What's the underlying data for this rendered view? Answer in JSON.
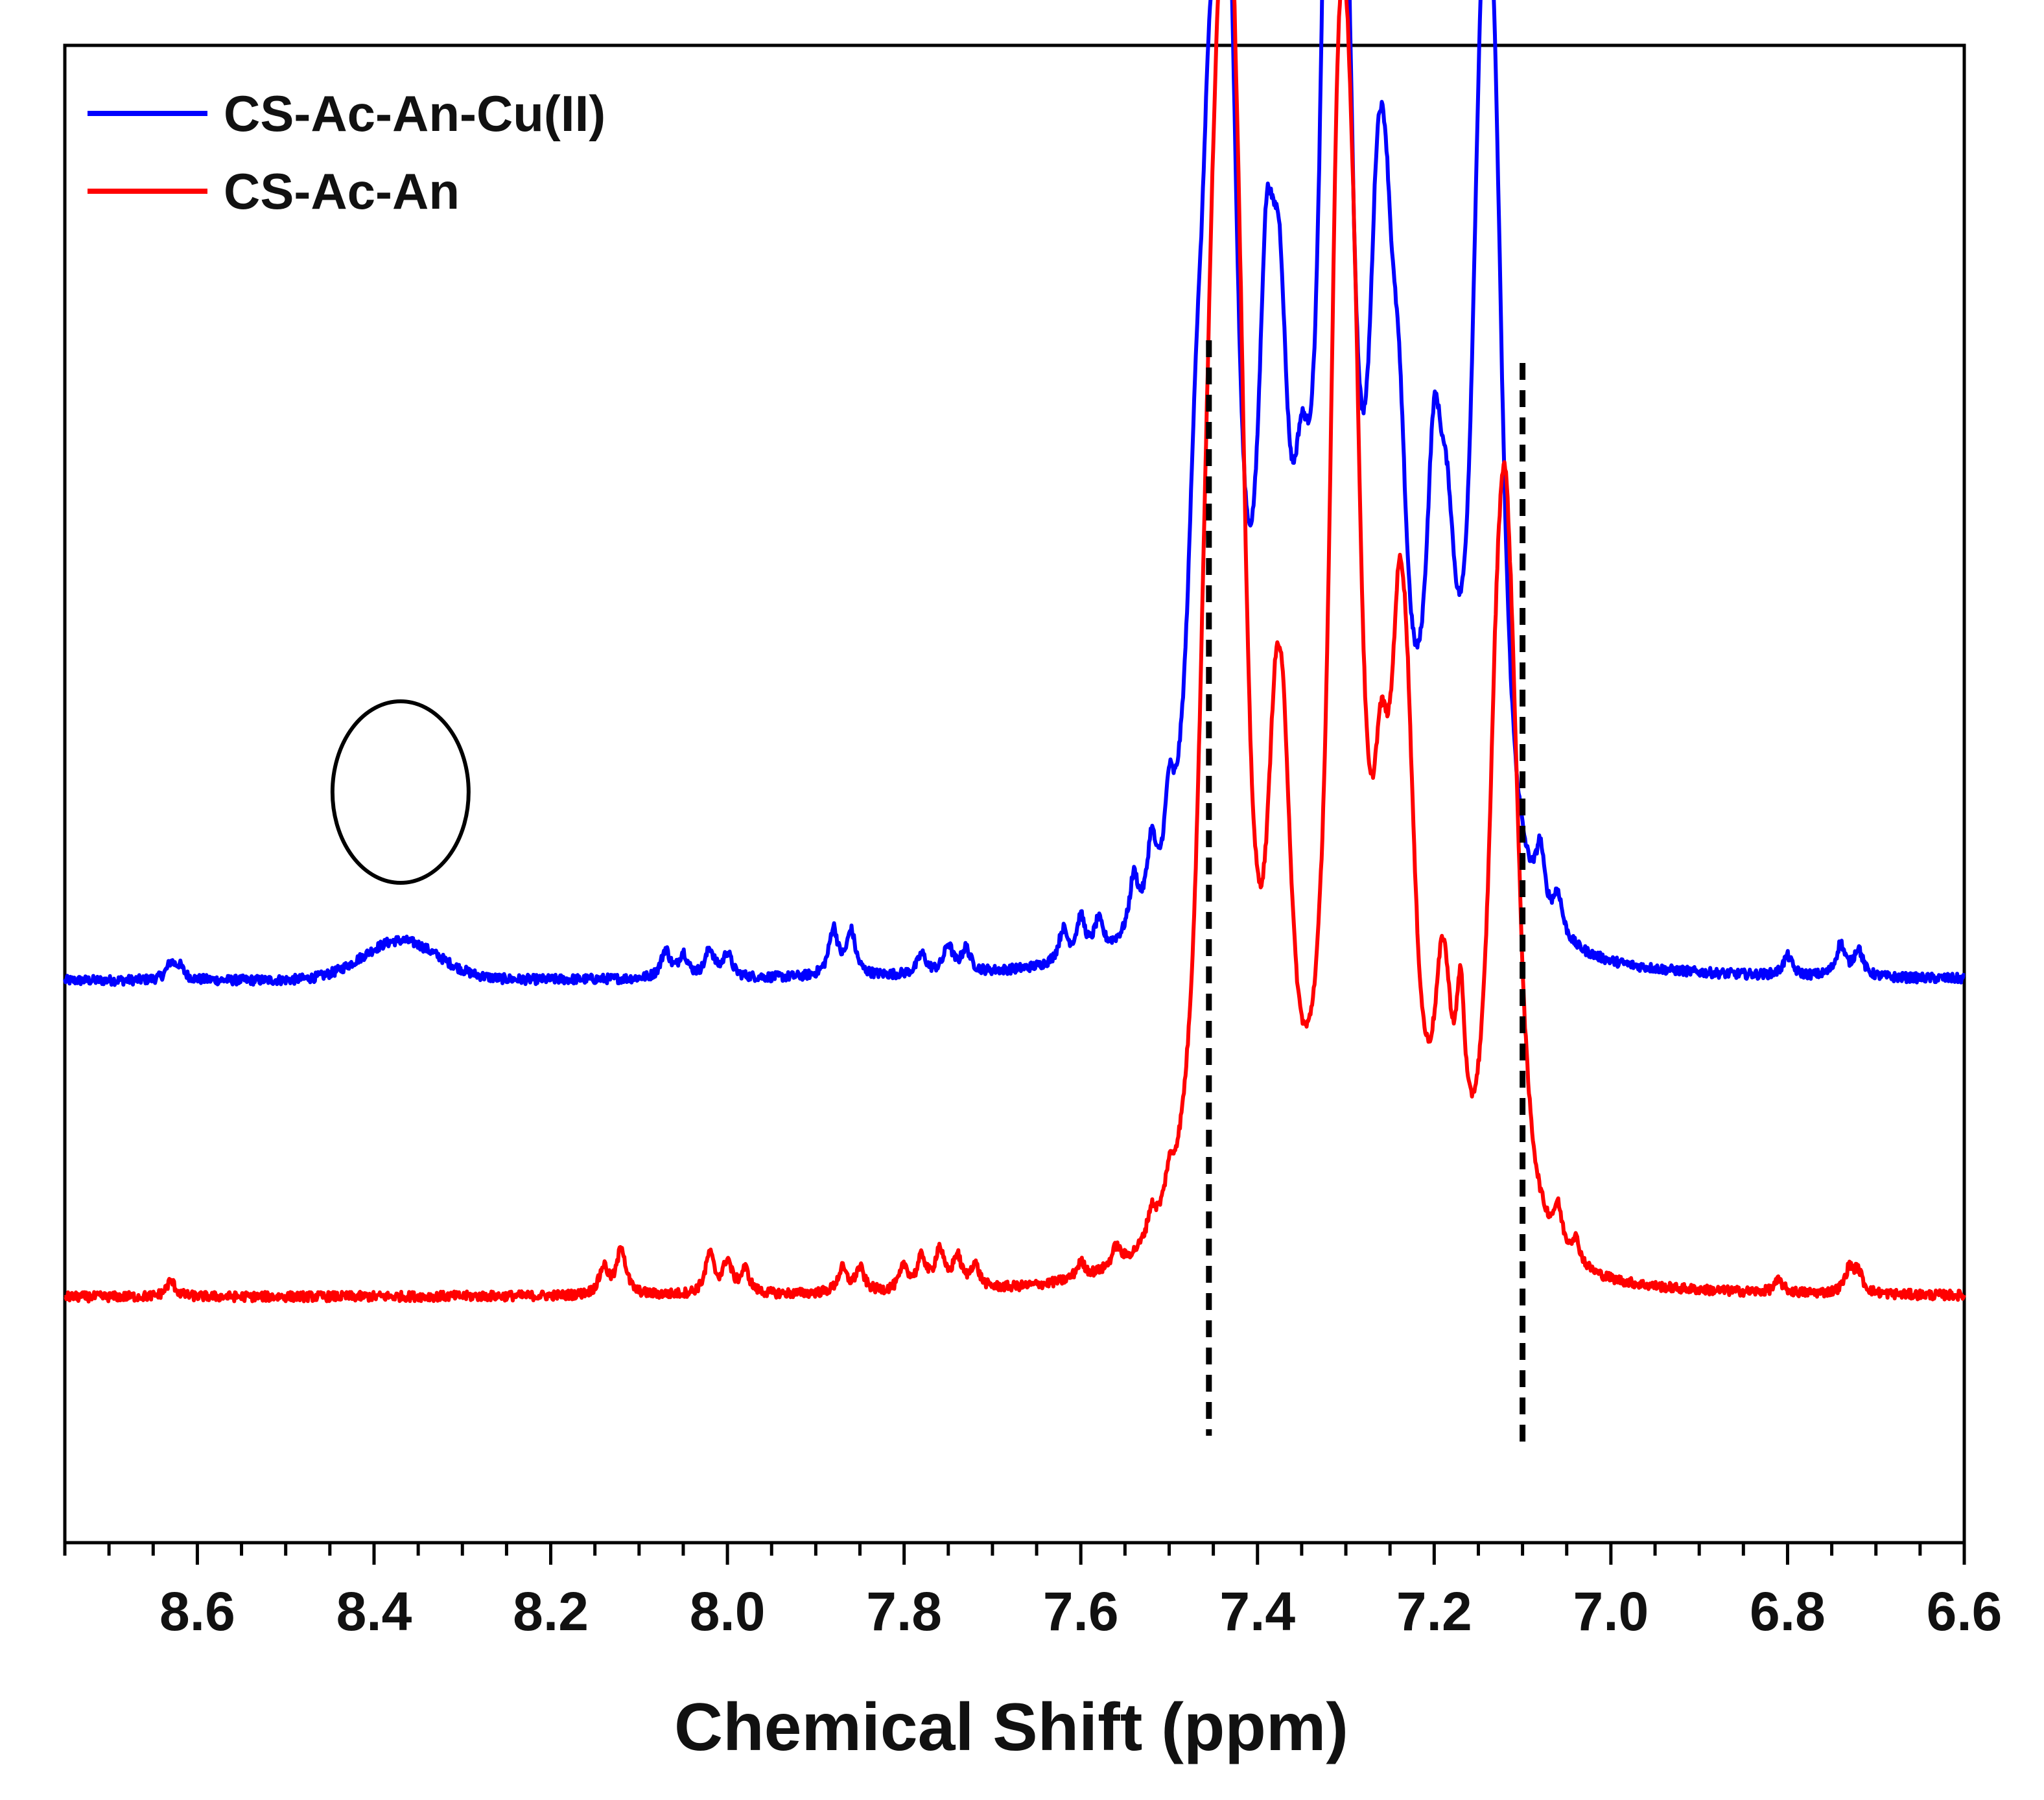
{
  "chart_data": {
    "type": "line",
    "title": "",
    "xlabel": "Chemical Shift (ppm)",
    "ylabel": "",
    "xlim": [
      8.75,
      6.6
    ],
    "x_reversed": true,
    "y_ticks_shown": false,
    "grid": false,
    "legend_position": "top-left",
    "x_ticks": [
      {
        "value": 8.6,
        "label": "8.6"
      },
      {
        "value": 8.4,
        "label": "8.4"
      },
      {
        "value": 8.2,
        "label": "8.2"
      },
      {
        "value": 8.0,
        "label": "8.0"
      },
      {
        "value": 7.8,
        "label": "7.8"
      },
      {
        "value": 7.6,
        "label": "7.6"
      },
      {
        "value": 7.4,
        "label": "7.4"
      },
      {
        "value": 7.2,
        "label": "7.2"
      },
      {
        "value": 7.0,
        "label": "7.0"
      },
      {
        "value": 6.8,
        "label": "6.8"
      },
      {
        "value": 6.6,
        "label": "6.6"
      }
    ],
    "x_minor_step": 0.05,
    "series": [
      {
        "name": "CS-Ac-An-Cu(II)",
        "color": "#0000ff",
        "baseline": 0.12,
        "broad_humps": [
          {
            "x": 8.37,
            "amp": 0.05,
            "width": 0.06
          }
        ],
        "peaks": [
          {
            "x": 8.63,
            "amp": 0.02
          },
          {
            "x": 8.62,
            "amp": 0.015
          },
          {
            "x": 8.07,
            "amp": 0.035
          },
          {
            "x": 8.05,
            "amp": 0.03
          },
          {
            "x": 8.02,
            "amp": 0.035
          },
          {
            "x": 8.0,
            "amp": 0.03
          },
          {
            "x": 7.88,
            "amp": 0.06
          },
          {
            "x": 7.86,
            "amp": 0.055
          },
          {
            "x": 7.78,
            "amp": 0.025
          },
          {
            "x": 7.75,
            "amp": 0.035
          },
          {
            "x": 7.73,
            "amp": 0.03
          },
          {
            "x": 7.62,
            "amp": 0.04
          },
          {
            "x": 7.6,
            "amp": 0.05
          },
          {
            "x": 7.58,
            "amp": 0.04
          },
          {
            "x": 7.54,
            "amp": 0.07
          },
          {
            "x": 7.52,
            "amp": 0.09
          },
          {
            "x": 7.5,
            "amp": 0.1
          },
          {
            "x": 7.47,
            "amp": 0.35
          },
          {
            "x": 7.455,
            "amp": 0.6
          },
          {
            "x": 7.44,
            "amp": 0.75
          },
          {
            "x": 7.43,
            "amp": 0.6
          },
          {
            "x": 7.39,
            "amp": 0.58
          },
          {
            "x": 7.375,
            "amp": 0.5
          },
          {
            "x": 7.35,
            "amp": 0.28
          },
          {
            "x": 7.32,
            "amp": 0.9
          },
          {
            "x": 7.31,
            "amp": 0.85
          },
          {
            "x": 7.3,
            "amp": 0.6
          },
          {
            "x": 7.265,
            "amp": 0.5
          },
          {
            "x": 7.255,
            "amp": 0.45
          },
          {
            "x": 7.24,
            "amp": 0.38
          },
          {
            "x": 7.2,
            "amp": 0.45
          },
          {
            "x": 7.185,
            "amp": 0.28
          },
          {
            "x": 7.15,
            "amp": 0.45
          },
          {
            "x": 7.14,
            "amp": 0.78
          },
          {
            "x": 7.13,
            "amp": 0.5
          },
          {
            "x": 7.08,
            "amp": 0.08
          },
          {
            "x": 7.06,
            "amp": 0.05
          },
          {
            "x": 6.8,
            "amp": 0.025
          },
          {
            "x": 6.74,
            "amp": 0.04
          },
          {
            "x": 6.72,
            "amp": 0.035
          }
        ]
      },
      {
        "name": "CS-Ac-An",
        "color": "#ff0000",
        "baseline": -0.28,
        "broad_humps": [],
        "peaks": [
          {
            "x": 8.63,
            "amp": 0.02
          },
          {
            "x": 8.14,
            "amp": 0.035
          },
          {
            "x": 8.12,
            "amp": 0.06
          },
          {
            "x": 8.02,
            "amp": 0.05
          },
          {
            "x": 8.0,
            "amp": 0.04
          },
          {
            "x": 7.98,
            "amp": 0.03
          },
          {
            "x": 7.87,
            "amp": 0.03
          },
          {
            "x": 7.85,
            "amp": 0.03
          },
          {
            "x": 7.8,
            "amp": 0.03
          },
          {
            "x": 7.78,
            "amp": 0.04
          },
          {
            "x": 7.76,
            "amp": 0.05
          },
          {
            "x": 7.74,
            "amp": 0.04
          },
          {
            "x": 7.72,
            "amp": 0.03
          },
          {
            "x": 7.6,
            "amp": 0.02
          },
          {
            "x": 7.56,
            "amp": 0.025
          },
          {
            "x": 7.52,
            "amp": 0.035
          },
          {
            "x": 7.5,
            "amp": 0.04
          },
          {
            "x": 7.46,
            "amp": 0.3
          },
          {
            "x": 7.45,
            "amp": 0.55
          },
          {
            "x": 7.44,
            "amp": 0.7
          },
          {
            "x": 7.43,
            "amp": 0.8
          },
          {
            "x": 7.42,
            "amp": 0.5
          },
          {
            "x": 7.38,
            "amp": 0.4
          },
          {
            "x": 7.37,
            "amp": 0.35
          },
          {
            "x": 7.31,
            "amp": 0.88
          },
          {
            "x": 7.3,
            "amp": 0.7
          },
          {
            "x": 7.29,
            "amp": 0.55
          },
          {
            "x": 7.26,
            "amp": 0.35
          },
          {
            "x": 7.24,
            "amp": 0.5
          },
          {
            "x": 7.23,
            "amp": 0.35
          },
          {
            "x": 7.19,
            "amp": 0.3
          },
          {
            "x": 7.17,
            "amp": 0.2
          },
          {
            "x": 7.13,
            "amp": 0.4
          },
          {
            "x": 7.12,
            "amp": 0.6
          },
          {
            "x": 7.11,
            "amp": 0.3
          },
          {
            "x": 7.06,
            "amp": 0.05
          },
          {
            "x": 7.04,
            "amp": 0.03
          },
          {
            "x": 6.81,
            "amp": 0.015
          },
          {
            "x": 6.73,
            "amp": 0.03
          },
          {
            "x": 6.72,
            "amp": 0.025
          }
        ]
      }
    ],
    "annotations": [
      {
        "type": "dashed-vline",
        "x": 7.455
      },
      {
        "type": "dashed-vline",
        "x": 7.1
      },
      {
        "type": "ellipse",
        "x": 8.37
      }
    ]
  }
}
